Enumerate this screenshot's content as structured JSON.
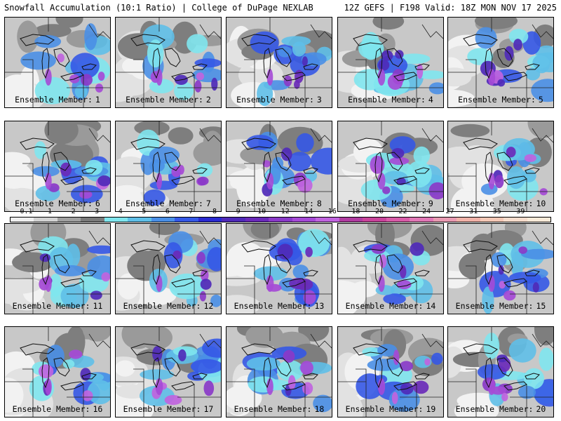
{
  "header": {
    "left": "Snowfall Accumulation (10:1 Ratio) | College of DuPage NEXLAB",
    "right": "12Z GEFS | F198 Valid: 18Z MON NOV 17 2025"
  },
  "member_label": "Ensemble Member:",
  "members": [
    {
      "number": "1",
      "intensity": 0.55
    },
    {
      "number": "2",
      "intensity": 0.5
    },
    {
      "number": "3",
      "intensity": 0.45
    },
    {
      "number": "4",
      "intensity": 0.75
    },
    {
      "number": "5",
      "intensity": 0.7
    },
    {
      "number": "6",
      "intensity": 0.55
    },
    {
      "number": "7",
      "intensity": 0.35
    },
    {
      "number": "8",
      "intensity": 0.7
    },
    {
      "number": "9",
      "intensity": 0.85
    },
    {
      "number": "10",
      "intensity": 0.5
    },
    {
      "number": "11",
      "intensity": 0.55
    },
    {
      "number": "12",
      "intensity": 0.5
    },
    {
      "number": "13",
      "intensity": 0.8
    },
    {
      "number": "14",
      "intensity": 0.55
    },
    {
      "number": "15",
      "intensity": 0.55
    },
    {
      "number": "16",
      "intensity": 0.6
    },
    {
      "number": "17",
      "intensity": 0.75
    },
    {
      "number": "18",
      "intensity": 0.6
    },
    {
      "number": "19",
      "intensity": 0.7
    },
    {
      "number": "20",
      "intensity": 0.7
    }
  ],
  "colorbar": {
    "ticks": [
      "0.1",
      "1",
      "2",
      "3",
      "4",
      "5",
      "6",
      "7",
      "8",
      "9",
      "10",
      "12",
      "14",
      "16",
      "18",
      "20",
      "22",
      "24",
      "27",
      "31",
      "35",
      "39"
    ],
    "colors": [
      "#eeeeee",
      "#d2d2d2",
      "#a0a0a0",
      "#7a7a7a",
      "#7fe6ee",
      "#5fbfe8",
      "#4a8fe6",
      "#3558e6",
      "#2a2ad0",
      "#4f2ab8",
      "#6a2ab8",
      "#8a3ac8",
      "#a54ad6",
      "#c064de",
      "#b03ca0",
      "#c8449a",
      "#d85ca8",
      "#e078b6",
      "#e89ab2",
      "#f0b2a8",
      "#f3c8b6",
      "#f6dccc",
      "#f8ead8"
    ]
  }
}
